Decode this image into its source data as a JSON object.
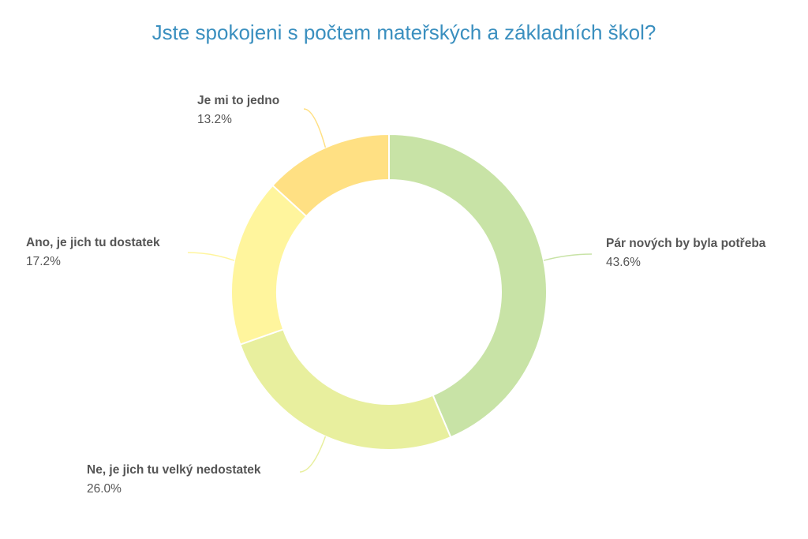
{
  "chart_data": {
    "type": "pie",
    "title": "Jste spokojeni s počtem mateřských a základních škol?",
    "slices": [
      {
        "label": "Pár nových by byla potřeba",
        "value": 43.6,
        "value_label": "43.6%",
        "color": "#c8e3a6"
      },
      {
        "label": "Ne, je jich tu velký nedostatek",
        "value": 26.0,
        "value_label": "26.0%",
        "color": "#e8ef9e"
      },
      {
        "label": "Ano, je jich tu dostatek",
        "value": 17.2,
        "value_label": "17.2%",
        "color": "#fff59d"
      },
      {
        "label": "Je mi to jedno",
        "value": 13.2,
        "value_label": "13.2%",
        "color": "#ffe083"
      }
    ]
  }
}
